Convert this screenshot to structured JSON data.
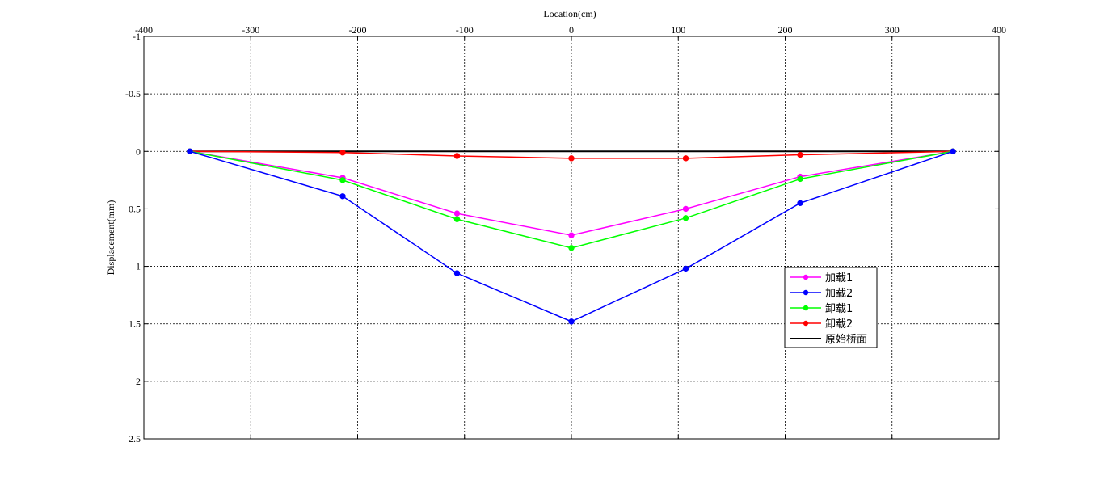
{
  "chart_data": {
    "type": "line",
    "title": "",
    "xlabel": "Location(cm)",
    "ylabel": "Displacement(mm)",
    "xlim": [
      -400,
      400
    ],
    "ylim": [
      -1,
      2.5
    ],
    "y_reversed": true,
    "x_axis_position": "top",
    "xticks": [
      "-400",
      "-300",
      "-200",
      "-100",
      "0",
      "100",
      "200",
      "300",
      "400"
    ],
    "yticks": [
      "-1",
      "-0.5",
      "0",
      "0.5",
      "1",
      "1.5",
      "2",
      "2.5"
    ],
    "grid": true,
    "legend_position": "right-center",
    "x": [
      -357,
      -214,
      -107,
      0,
      107,
      214,
      357
    ],
    "series": [
      {
        "name": "加载1",
        "color": "#ff00ff",
        "marker": true,
        "values": [
          0,
          0.23,
          0.54,
          0.73,
          0.5,
          0.22,
          0
        ]
      },
      {
        "name": "加载2",
        "color": "#0000ff",
        "marker": true,
        "values": [
          0,
          0.39,
          1.06,
          1.48,
          1.02,
          0.45,
          0
        ]
      },
      {
        "name": "卸载1",
        "color": "#00ff00",
        "marker": true,
        "values": [
          0,
          0.25,
          0.59,
          0.84,
          0.58,
          0.24,
          0
        ]
      },
      {
        "name": "卸载2",
        "color": "#ff0000",
        "marker": true,
        "values": [
          0,
          0.01,
          0.04,
          0.06,
          0.06,
          0.03,
          0
        ]
      },
      {
        "name": "原始桥面",
        "color": "#000000",
        "marker": false,
        "values": [
          0,
          0,
          0,
          0,
          0,
          0,
          0
        ]
      }
    ]
  }
}
